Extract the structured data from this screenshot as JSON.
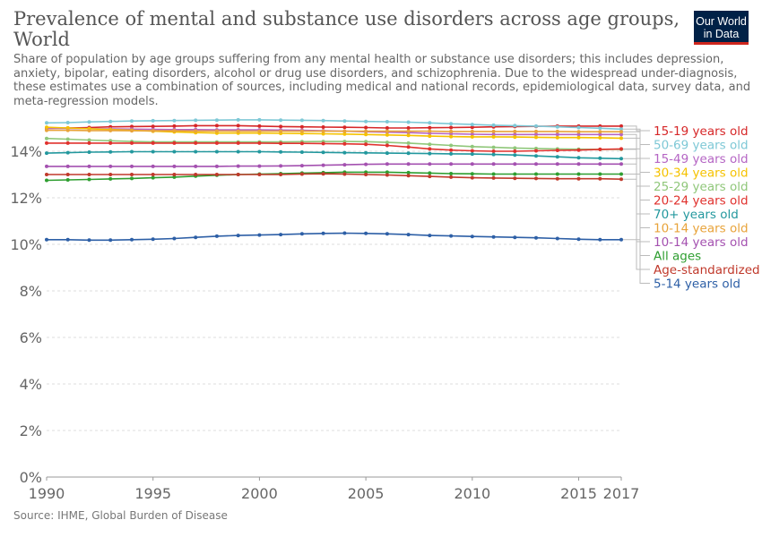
{
  "header": {
    "title": "Prevalence of mental and substance use disorders across age groups, World",
    "subtitle": "Share of population by age groups suffering from any mental health or substance use disorders; this includes depression, anxiety, bipolar, eating disorders, alcohol or drug use disorders, and schizophrenia. Due to the widespread under-diagnosis, these estimates use a combination of sources, including medical and national records, epidemiological data, survey data, and meta-regression models.",
    "logo_line1": "Our World",
    "logo_line2": "in Data"
  },
  "footer": {
    "source_label": "Source:",
    "source_text": "IHME, Global Burden of Disease"
  },
  "chart_data": {
    "type": "line",
    "xlim": [
      1990,
      2017
    ],
    "ylim": [
      0,
      15.5
    ],
    "x_ticks": [
      1990,
      1995,
      2000,
      2005,
      2010,
      2015,
      2017
    ],
    "y_ticks": [
      0,
      2,
      4,
      6,
      8,
      10,
      12,
      14
    ],
    "y_tick_suffix": "%",
    "grid": "horizontal dashed",
    "legend": "right, ordered by last value",
    "series": [
      {
        "name": "15-19 years old",
        "color": "#d62728",
        "start": 14.98,
        "end": 15.08,
        "values": [
          14.98,
          15.0,
          15.02,
          15.05,
          15.06,
          15.07,
          15.08,
          15.1,
          15.1,
          15.1,
          15.08,
          15.06,
          15.05,
          15.04,
          15.03,
          15.02,
          15.0,
          15.0,
          15.01,
          15.02,
          15.03,
          15.05,
          15.06,
          15.07,
          15.08,
          15.08,
          15.08,
          15.08
        ]
      },
      {
        "name": "50-69 years old",
        "color": "#7ec8d6",
        "start": 15.22,
        "end": 14.95,
        "values": [
          15.22,
          15.23,
          15.26,
          15.28,
          15.3,
          15.31,
          15.32,
          15.33,
          15.34,
          15.35,
          15.35,
          15.34,
          15.33,
          15.32,
          15.3,
          15.28,
          15.27,
          15.25,
          15.22,
          15.18,
          15.15,
          15.12,
          15.1,
          15.08,
          15.05,
          15.02,
          14.99,
          14.95
        ]
      },
      {
        "name": "15-49 years old",
        "color": "#b565c4",
        "start": 14.98,
        "end": 14.72,
        "values": [
          14.98,
          14.98,
          14.97,
          14.96,
          14.95,
          14.94,
          14.93,
          14.93,
          14.92,
          14.92,
          14.92,
          14.91,
          14.9,
          14.88,
          14.86,
          14.84,
          14.82,
          14.8,
          14.77,
          14.75,
          14.73,
          14.72,
          14.72,
          14.72,
          14.72,
          14.72,
          14.72,
          14.72
        ]
      },
      {
        "name": "30-34 years old",
        "color": "#f5c200",
        "start": 15.03,
        "end": 14.56,
        "values": [
          15.03,
          15.0,
          14.97,
          14.93,
          14.9,
          14.86,
          14.83,
          14.8,
          14.78,
          14.78,
          14.78,
          14.77,
          14.76,
          14.75,
          14.74,
          14.72,
          14.7,
          14.68,
          14.65,
          14.63,
          14.62,
          14.62,
          14.61,
          14.6,
          14.59,
          14.59,
          14.58,
          14.56
        ]
      },
      {
        "name": "25-29 years old",
        "color": "#90c77a",
        "start": 14.55,
        "end": 14.08,
        "values": [
          14.55,
          14.52,
          14.48,
          14.45,
          14.42,
          14.4,
          14.4,
          14.4,
          14.4,
          14.4,
          14.4,
          14.4,
          14.41,
          14.42,
          14.42,
          14.41,
          14.38,
          14.35,
          14.3,
          14.25,
          14.2,
          14.17,
          14.14,
          14.12,
          14.1,
          14.09,
          14.08,
          14.08
        ]
      },
      {
        "name": "20-24 years old",
        "color": "#e0312d",
        "start": 14.35,
        "end": 14.1,
        "values": [
          14.35,
          14.35,
          14.35,
          14.35,
          14.35,
          14.35,
          14.35,
          14.35,
          14.35,
          14.35,
          14.35,
          14.34,
          14.34,
          14.33,
          14.32,
          14.3,
          14.25,
          14.18,
          14.1,
          14.05,
          14.02,
          14.0,
          14.0,
          14.02,
          14.04,
          14.05,
          14.08,
          14.1
        ]
      },
      {
        "name": "70+ years old",
        "color": "#23989e",
        "start": 13.92,
        "end": 13.68,
        "values": [
          13.92,
          13.94,
          13.96,
          13.97,
          13.98,
          13.98,
          13.98,
          13.98,
          13.98,
          13.98,
          13.98,
          13.97,
          13.96,
          13.95,
          13.94,
          13.93,
          13.92,
          13.91,
          13.9,
          13.89,
          13.88,
          13.86,
          13.84,
          13.8,
          13.76,
          13.72,
          13.7,
          13.68
        ]
      },
      {
        "name": "10-14 years old",
        "color": "#e8a33a",
        "start": 14.9,
        "end": 14.84,
        "values": [
          14.9,
          14.9,
          14.89,
          14.89,
          14.88,
          14.88,
          14.88,
          14.87,
          14.87,
          14.86,
          14.86,
          14.86,
          14.86,
          14.86,
          14.86,
          14.86,
          14.86,
          14.86,
          14.86,
          14.85,
          14.85,
          14.85,
          14.85,
          14.85,
          14.85,
          14.84,
          14.84,
          14.84
        ]
      },
      {
        "name": "10-14 years old",
        "color": "#a451b0",
        "start": 13.35,
        "end": 13.45,
        "values": [
          13.35,
          13.35,
          13.35,
          13.35,
          13.35,
          13.35,
          13.35,
          13.35,
          13.35,
          13.36,
          13.36,
          13.37,
          13.38,
          13.4,
          13.42,
          13.44,
          13.45,
          13.45,
          13.45,
          13.45,
          13.45,
          13.45,
          13.45,
          13.45,
          13.45,
          13.45,
          13.45,
          13.45
        ]
      },
      {
        "name": "All ages",
        "color": "#2e9e30",
        "start": 12.75,
        "end": 13.02,
        "values": [
          12.75,
          12.77,
          12.79,
          12.81,
          12.83,
          12.86,
          12.89,
          12.93,
          12.97,
          13.0,
          13.02,
          13.04,
          13.06,
          13.08,
          13.1,
          13.1,
          13.1,
          13.08,
          13.06,
          13.04,
          13.03,
          13.02,
          13.02,
          13.02,
          13.02,
          13.02,
          13.02,
          13.02
        ]
      },
      {
        "name": "Age-standardized",
        "color": "#c0392b",
        "start": 13.0,
        "end": 12.8,
        "values": [
          13.0,
          13.0,
          13.0,
          13.0,
          13.0,
          13.0,
          13.0,
          13.0,
          13.0,
          13.0,
          13.0,
          13.0,
          13.02,
          13.03,
          13.02,
          13.0,
          12.98,
          12.95,
          12.92,
          12.89,
          12.86,
          12.85,
          12.84,
          12.83,
          12.82,
          12.82,
          12.82,
          12.8
        ]
      },
      {
        "name": "5-14 years old",
        "color": "#2d5fa6",
        "start": 10.2,
        "end": 10.2,
        "values": [
          10.2,
          10.2,
          10.18,
          10.18,
          10.2,
          10.22,
          10.25,
          10.3,
          10.35,
          10.38,
          10.4,
          10.42,
          10.45,
          10.47,
          10.48,
          10.47,
          10.45,
          10.42,
          10.38,
          10.36,
          10.34,
          10.32,
          10.3,
          10.28,
          10.25,
          10.22,
          10.2,
          10.2
        ]
      }
    ],
    "legend_order": [
      "15-19 years old",
      "50-69 years old",
      "15-49 years old",
      "30-34 years old",
      "25-29 years old",
      "20-24 years old",
      "70+ years old",
      "10-14 years old",
      "10-14 years old",
      "All ages",
      "Age-standardized",
      "5-14 years old"
    ],
    "legend_colors": [
      "#d62728",
      "#7ec8d6",
      "#b565c4",
      "#f5c200",
      "#90c77a",
      "#e0312d",
      "#23989e",
      "#e8a33a",
      "#a451b0",
      "#2e9e30",
      "#c0392b",
      "#2d5fa6"
    ]
  }
}
